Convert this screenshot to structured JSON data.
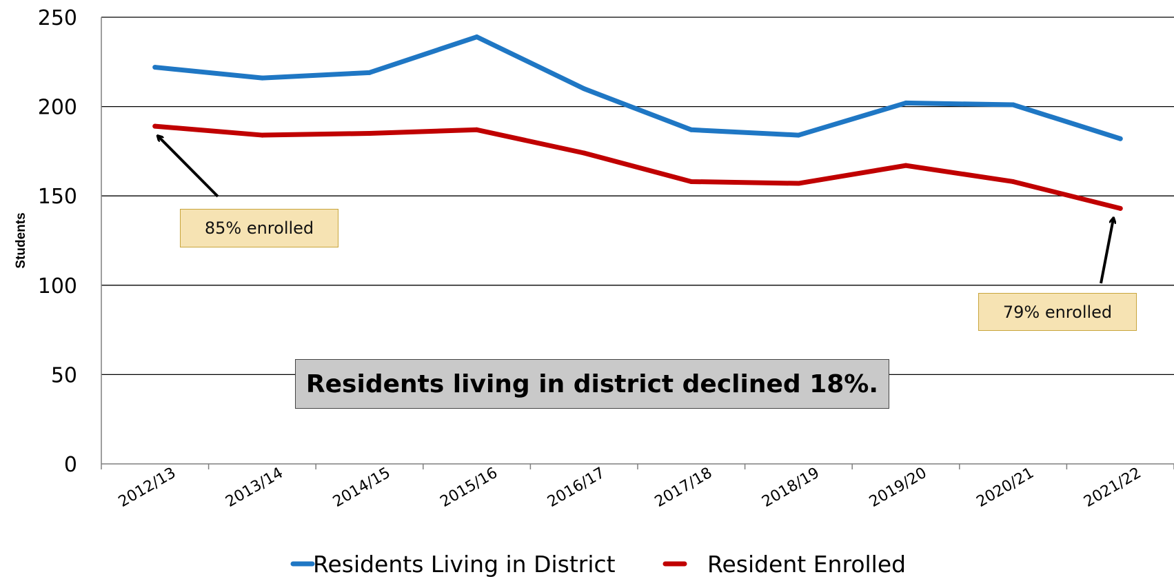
{
  "chart_data": {
    "type": "line",
    "title": "",
    "xlabel": "",
    "ylabel": "Students",
    "ylim": [
      0,
      250
    ],
    "yticks": [
      0,
      50,
      100,
      150,
      200,
      250
    ],
    "grid": true,
    "legend_position": "bottom",
    "categories": [
      "2012/13",
      "2013/14",
      "2014/15",
      "2015/16",
      "2016/17",
      "2017/18",
      "2018/19",
      "2019/20",
      "2020/21",
      "2021/22"
    ],
    "series": [
      {
        "name": "Residents Living in District",
        "color": "#1f77c4",
        "values": [
          222,
          216,
          219,
          239,
          210,
          187,
          184,
          202,
          201,
          182
        ]
      },
      {
        "name": "Resident Enrolled",
        "color": "#c00000",
        "values": [
          189,
          184,
          185,
          187,
          174,
          158,
          157,
          167,
          158,
          143
        ]
      }
    ],
    "annotations": [
      {
        "text": "85% enrolled",
        "points_to": "2012/13"
      },
      {
        "text": "79% enrolled",
        "points_to": "2021/22"
      }
    ],
    "headline": "Residents living in district declined 18%."
  }
}
